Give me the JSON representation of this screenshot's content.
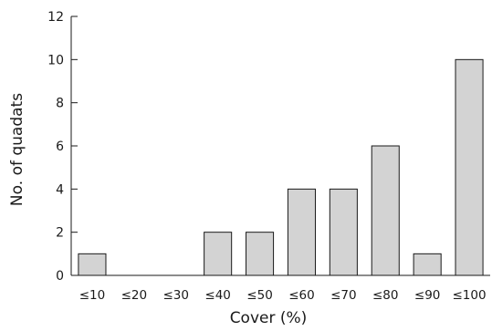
{
  "chart_data": {
    "type": "bar",
    "categories": [
      "≤10",
      "≤20",
      "≤30",
      "≤40",
      "≤50",
      "≤60",
      "≤70",
      "≤80",
      "≤90",
      "≤100"
    ],
    "values": [
      1,
      0,
      0,
      2,
      2,
      4,
      4,
      6,
      1,
      10
    ],
    "title": "",
    "xlabel": "Cover (%)",
    "ylabel": "No. of quadats",
    "ylim": [
      0,
      12
    ],
    "yticks": [
      0,
      2,
      4,
      6,
      8,
      10,
      12
    ],
    "grid": false,
    "bar_color": "#d3d3d3",
    "edge_color": "#1a1a1a"
  }
}
